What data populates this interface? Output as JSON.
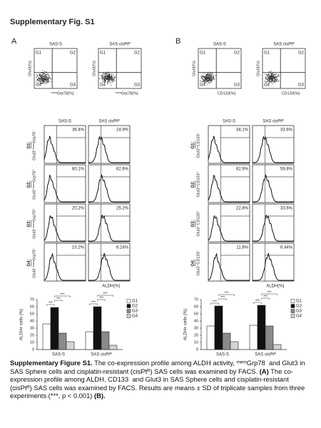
{
  "title": "Supplementary Fig. S1",
  "panels": [
    {
      "label": "A",
      "scatter": {
        "titles": [
          "SAS-S",
          "SAS cisPtᴿ"
        ],
        "quadrants": [
          "G1",
          "G2",
          "G4",
          "G3"
        ],
        "ylabel": "Glut3(%)",
        "xlabel": "ᵐᵉᵐGrp78(%)"
      },
      "histograms": {
        "columns": [
          "SAS-S",
          "SAS cisPtᴿ"
        ],
        "rows": [
          {
            "group": "G1:",
            "label": "Glut3⁺ᵐᵉᵐGrp78⁻",
            "values": [
              "36.4%",
              "24.9%"
            ]
          },
          {
            "group": "G2:",
            "label": "Glut3⁺ᵐᵉᵐGrp78⁺",
            "values": [
              "60.1%",
              "62.6%"
            ]
          },
          {
            "group": "G3:",
            "label": "Glut3⁻ᵐᵉᵐGrp78⁺",
            "values": [
              "20.2%",
              "25.2%"
            ]
          },
          {
            "group": "G4:",
            "label": "Glut3⁻ᵐᵉᵐGrp78⁻",
            "values": [
              "10.2%",
              "6.24%"
            ]
          }
        ],
        "xlabel": "ALDH(%)"
      },
      "bar_chart": {
        "type": "bar",
        "ylabel": "ALDH+ cells (%)",
        "categories": [
          "SAS-S",
          "SAS cisPtᴿ"
        ],
        "series": [
          {
            "name": "G1",
            "color": "#ffffff",
            "values": [
              36,
              25
            ]
          },
          {
            "name": "G2",
            "color": "#111111",
            "values": [
              59,
              60
            ]
          },
          {
            "name": "G3",
            "color": "#8a8a8a",
            "values": [
              23,
              25
            ]
          },
          {
            "name": "G4",
            "color": "#d4d4d4",
            "values": [
              11,
              6
            ]
          }
        ],
        "ylim": [
          0,
          70
        ],
        "yticks": [
          0,
          10,
          20,
          30,
          40,
          50,
          60,
          70
        ],
        "significance": "***"
      }
    },
    {
      "label": "B",
      "scatter": {
        "titles": [
          "SAS-S",
          "SAS cisPtᴿ"
        ],
        "quadrants": [
          "G1",
          "G2",
          "G4",
          "G3"
        ],
        "ylabel": "Glut3(%)",
        "xlabel": "CD133(%)"
      },
      "histograms": {
        "columns": [
          "SAS-S",
          "SAS cisPtᴿ"
        ],
        "rows": [
          {
            "group": "G1:",
            "label": "Glut3⁺CD133⁻",
            "values": [
              "34.1%",
              "33.6%"
            ]
          },
          {
            "group": "G2:",
            "label": "Glut3⁺CD133⁺",
            "values": [
              "62.9%",
              "59.8%"
            ]
          },
          {
            "group": "G3:",
            "label": "Glut3⁻CD133⁺",
            "values": [
              "22.8%",
              "33.6%"
            ]
          },
          {
            "group": "G4:",
            "label": "Glut3⁻CD133⁻",
            "values": [
              "11.8%",
              "6.44%"
            ]
          }
        ],
        "xlabel": "ALDH(%)"
      },
      "bar_chart": {
        "type": "bar",
        "ylabel": "ALDH+ cells (%)",
        "categories": [
          "SAS-S",
          "SAS cisPtᴿ"
        ],
        "series": [
          {
            "name": "G1",
            "color": "#ffffff",
            "values": [
              33,
              34
            ]
          },
          {
            "name": "G2",
            "color": "#111111",
            "values": [
              61,
              62
            ]
          },
          {
            "name": "G3",
            "color": "#8a8a8a",
            "values": [
              23,
              33
            ]
          },
          {
            "name": "G4",
            "color": "#d4d4d4",
            "values": [
              11,
              7
            ]
          }
        ],
        "ylim": [
          0,
          70
        ],
        "yticks": [
          0,
          10,
          20,
          30,
          40,
          50,
          60,
          70
        ],
        "significance": "***"
      }
    }
  ],
  "caption": [
    {
      "text": "Supplementary Figure S1.",
      "bold": true
    },
    {
      "text": " The co-expression profile among ALDH activity, ᵐᵉᵐGrp78  and Glut3 in SAS Sphere cells and cisplatin-resistant (cisPtᴿ) SAS cells was examined by FACS. ",
      "bold": false
    },
    {
      "text": "(A)",
      "bold": true
    },
    {
      "text": " The co-expression profile among ALDH, CD133  and Glut3 in SAS Sphere cells and cisplatin-resistant (cisPtᴿ) SAS cells was examined by FACS. Results are means ± SD of triplicate samples from three experiments (***, p < 0.001) ",
      "bold": false
    },
    {
      "text": "(B).",
      "bold": true
    }
  ]
}
